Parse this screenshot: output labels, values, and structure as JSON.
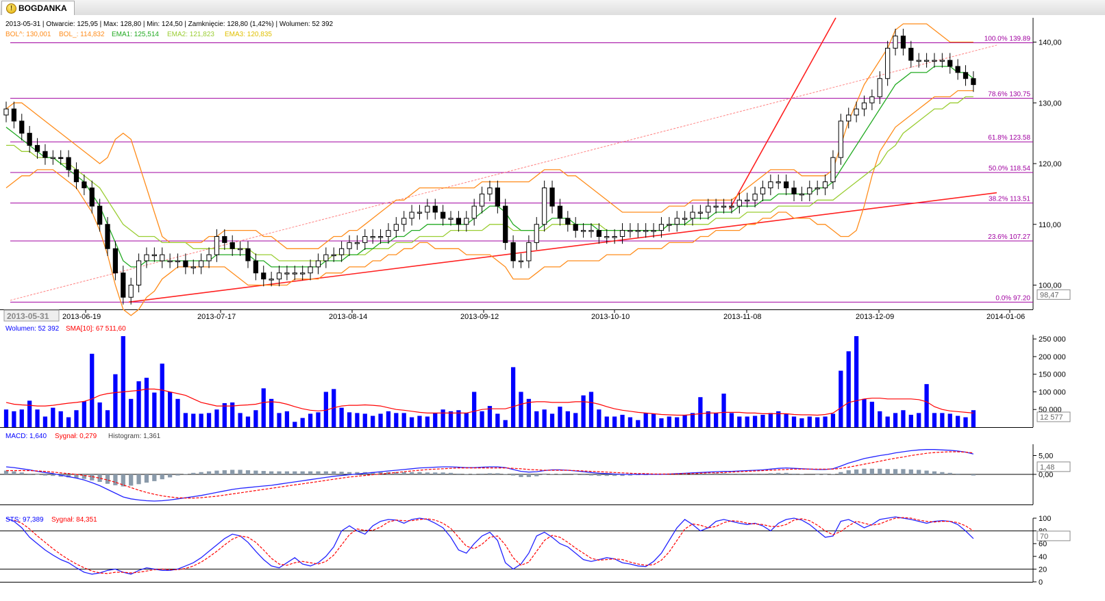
{
  "tab": {
    "title": "BOGDANKA",
    "icon": "warning-icon"
  },
  "colors": {
    "up": "#ffffff",
    "down": "#000000",
    "bol": "#ff8c1a",
    "ema1": "#22aa22",
    "ema2": "#9acd32",
    "ema3": "#e0e040",
    "fib": "#a000a0",
    "trend": "#ff2020",
    "volume": "#0000ff",
    "sma": "#ff0000",
    "macd": "#2222ff",
    "signal": "#ff0000",
    "hist": "#8a9aaa",
    "sts": "#2222ff"
  },
  "price_info": {
    "line1": "2013-05-31 | Otwarcie: 125,95 | Max: 128,80 | Min: 124,50 | Zamknięcie: 128,80 (1,42%) | Wolumen: 52 392",
    "bol_up": "BOL^: 130,001",
    "bol_dn": "BOL_: 114,832",
    "ema1": "EMA1: 125,514",
    "ema2": "EMA2: 121,823",
    "ema3": "EMA3: 120,835"
  },
  "volume_info": {
    "vol": "Wolumen: 52 392",
    "sma": "SMA[10]: 67 511,60"
  },
  "macd_info": {
    "macd": "MACD: 1,640",
    "signal": "Sygnał: 0,279",
    "hist": "Histogram: 1,361"
  },
  "sts_info": {
    "sts": "STS: 97,389",
    "signal": "Sygnał: 84,351"
  },
  "chart_data": {
    "type": "candlestick",
    "x_axis_labels": [
      "2013-06-19",
      "2013-07-17",
      "2013-08-14",
      "2013-09-12",
      "2013-10-10",
      "2013-11-08",
      "2013-12-09",
      "2014-01-06"
    ],
    "cursor_date": "2013-05-31",
    "price_axis": {
      "ylim": [
        96,
        144
      ],
      "ticks": [
        "100,00",
        "110,00",
        "120,00",
        "130,00",
        "140,00"
      ],
      "last_value": "98,47"
    },
    "fib_levels": [
      {
        "label": "100.0% 139.89",
        "value": 139.89
      },
      {
        "label": "78.6% 130.75",
        "value": 130.75
      },
      {
        "label": "61.8% 123.58",
        "value": 123.58
      },
      {
        "label": "50.0% 118.54",
        "value": 118.54
      },
      {
        "label": "38.2% 113.51",
        "value": 113.51
      },
      {
        "label": "23.6% 107.27",
        "value": 107.27
      },
      {
        "label": "0.0% 97.20",
        "value": 97.2
      }
    ],
    "closes": [
      129,
      127,
      125,
      123,
      122,
      121,
      121,
      121,
      119,
      117,
      116,
      113,
      110,
      106,
      102,
      98,
      100,
      104,
      105,
      105,
      104,
      104,
      104,
      103,
      103,
      104,
      105,
      108,
      107,
      106,
      106,
      104,
      102,
      101,
      101,
      102,
      102,
      102,
      102,
      103,
      104,
      105,
      105,
      106,
      107,
      107,
      108,
      108,
      108,
      109,
      110,
      111,
      112,
      112,
      113,
      112,
      111,
      111,
      110,
      111,
      113,
      115,
      116,
      113,
      107,
      104,
      104,
      107,
      110,
      116,
      113,
      111,
      110,
      109,
      109,
      109,
      108,
      108,
      108,
      109,
      109,
      109,
      109,
      109,
      110,
      110,
      111,
      111,
      112,
      112,
      113,
      113,
      113,
      113,
      114,
      114,
      115,
      116,
      117,
      117,
      116,
      115,
      115,
      116,
      116,
      117,
      121,
      127,
      128,
      129,
      130,
      131,
      134,
      139,
      141,
      139,
      137,
      137,
      137,
      137,
      137,
      136,
      135,
      134,
      133
    ],
    "fills": [
      0,
      1,
      1,
      1,
      1,
      1,
      0,
      1,
      1,
      1,
      1,
      1,
      1,
      1,
      1,
      1,
      0,
      0,
      0,
      0,
      0,
      0,
      0,
      1,
      0,
      0,
      0,
      0,
      1,
      1,
      0,
      1,
      1,
      1,
      0,
      0,
      0,
      0,
      0,
      0,
      0,
      0,
      0,
      0,
      0,
      0,
      0,
      0,
      0,
      0,
      0,
      0,
      0,
      0,
      0,
      1,
      1,
      0,
      1,
      0,
      0,
      0,
      0,
      1,
      1,
      1,
      0,
      0,
      0,
      0,
      1,
      1,
      1,
      1,
      0,
      0,
      1,
      0,
      0,
      0,
      0,
      0,
      0,
      0,
      0,
      0,
      0,
      0,
      0,
      0,
      0,
      0,
      0,
      0,
      0,
      0,
      0,
      0,
      0,
      0,
      1,
      1,
      0,
      0,
      0,
      0,
      0,
      0,
      0,
      0,
      0,
      0,
      0,
      0,
      0,
      1,
      1,
      0,
      0,
      0,
      0,
      1,
      1,
      1,
      1
    ],
    "ema1": [
      126,
      125,
      124,
      123,
      122,
      121,
      121,
      120,
      119,
      118,
      117,
      115,
      113,
      110,
      107,
      104,
      103,
      103,
      104,
      104,
      104,
      104,
      104,
      104,
      104,
      104,
      104,
      105,
      105,
      105,
      105,
      105,
      104,
      104,
      103,
      103,
      103,
      103,
      103,
      103,
      103,
      104,
      104,
      104,
      105,
      105,
      106,
      106,
      107,
      107,
      108,
      108,
      109,
      109,
      110,
      110,
      110,
      110,
      110,
      110,
      111,
      112,
      113,
      113,
      112,
      110,
      109,
      109,
      109,
      110,
      111,
      111,
      111,
      110,
      110,
      110,
      109,
      109,
      109,
      109,
      109,
      109,
      109,
      109,
      109,
      110,
      110,
      110,
      111,
      111,
      111,
      112,
      112,
      112,
      113,
      113,
      113,
      114,
      114,
      115,
      115,
      115,
      115,
      115,
      116,
      116,
      117,
      119,
      121,
      123,
      125,
      127,
      129,
      131,
      133,
      134,
      135,
      135,
      135,
      136,
      136,
      136,
      135,
      135,
      134
    ],
    "ema2": [
      123,
      123,
      122,
      122,
      121,
      121,
      121,
      120,
      120,
      119,
      118,
      117,
      116,
      114,
      112,
      110,
      109,
      108,
      108,
      108,
      107,
      107,
      107,
      107,
      106,
      106,
      106,
      106,
      106,
      106,
      106,
      106,
      105,
      105,
      105,
      104,
      104,
      104,
      104,
      104,
      104,
      104,
      105,
      105,
      105,
      105,
      105,
      106,
      106,
      106,
      107,
      107,
      107,
      108,
      108,
      108,
      108,
      109,
      109,
      109,
      109,
      109,
      110,
      110,
      110,
      109,
      109,
      109,
      109,
      109,
      110,
      110,
      110,
      110,
      110,
      110,
      110,
      109,
      109,
      109,
      109,
      109,
      109,
      109,
      109,
      110,
      110,
      110,
      110,
      110,
      110,
      111,
      111,
      111,
      111,
      112,
      112,
      112,
      112,
      113,
      113,
      113,
      113,
      113,
      114,
      114,
      114,
      115,
      116,
      117,
      118,
      119,
      120,
      122,
      123,
      125,
      126,
      127,
      128,
      129,
      129,
      130,
      130,
      131,
      131
    ],
    "ema3": [
      null,
      null,
      null,
      null,
      null,
      null,
      null,
      null,
      null,
      null,
      null,
      null,
      null,
      null,
      null,
      null,
      null,
      null,
      null,
      null,
      null,
      null,
      null,
      null,
      null,
      null,
      null,
      null,
      null,
      null,
      null,
      null,
      null,
      null,
      null,
      null,
      null,
      null,
      null,
      null,
      null,
      null,
      null,
      null,
      null,
      null,
      null,
      null,
      null,
      null,
      null,
      null,
      null,
      null,
      null,
      null,
      null,
      null,
      null,
      null,
      null,
      null,
      null,
      null,
      null,
      null,
      null,
      null,
      null,
      null,
      null,
      null,
      null,
      null,
      null,
      null,
      null,
      null,
      null,
      null,
      null,
      null,
      null,
      null,
      null,
      null,
      null,
      null,
      null,
      null,
      null,
      null,
      null,
      null,
      null,
      null,
      null,
      null,
      null,
      null,
      null,
      null,
      null,
      null,
      null,
      null,
      null,
      null,
      null,
      null,
      null,
      null,
      null,
      null,
      null,
      null,
      null,
      null,
      null,
      null,
      null,
      null,
      null,
      null,
      null
    ],
    "bol_up": [
      129,
      130,
      130,
      129,
      128,
      127,
      126,
      125,
      124,
      123,
      122,
      121,
      120,
      121,
      124,
      125,
      124,
      120,
      116,
      112,
      108,
      107,
      107,
      107,
      107,
      107,
      108,
      108,
      109,
      109,
      109,
      109,
      109,
      108,
      108,
      107,
      106,
      106,
      106,
      106,
      106,
      107,
      108,
      108,
      109,
      109,
      110,
      111,
      112,
      113,
      114,
      114,
      115,
      116,
      116,
      116,
      116,
      116,
      116,
      116,
      116,
      117,
      117,
      117,
      117,
      117,
      117,
      117,
      118,
      119,
      119,
      119,
      118,
      118,
      117,
      116,
      115,
      114,
      113,
      112,
      112,
      112,
      112,
      112,
      112,
      113,
      113,
      113,
      114,
      114,
      114,
      114,
      114,
      114,
      115,
      116,
      117,
      118,
      119,
      119,
      119,
      119,
      118,
      118,
      118,
      118,
      119,
      123,
      127,
      130,
      133,
      135,
      137,
      139,
      142,
      143,
      143,
      143,
      143,
      142,
      141,
      140,
      140,
      140,
      140
    ],
    "bol_dn": [
      116,
      117,
      118,
      118,
      119,
      119,
      119,
      118,
      117,
      116,
      114,
      112,
      109,
      105,
      100,
      96,
      95,
      96,
      98,
      99,
      101,
      102,
      103,
      103,
      103,
      103,
      103,
      103,
      103,
      102,
      101,
      100,
      100,
      100,
      100,
      100,
      100,
      101,
      101,
      101,
      101,
      102,
      102,
      102,
      103,
      103,
      103,
      104,
      104,
      105,
      105,
      106,
      106,
      107,
      107,
      106,
      106,
      106,
      106,
      105,
      105,
      105,
      105,
      104,
      103,
      101,
      101,
      101,
      102,
      103,
      103,
      103,
      104,
      104,
      104,
      104,
      104,
      105,
      105,
      105,
      105,
      106,
      106,
      106,
      106,
      107,
      107,
      107,
      107,
      108,
      108,
      109,
      109,
      109,
      109,
      110,
      110,
      111,
      111,
      112,
      112,
      111,
      111,
      111,
      110,
      110,
      109,
      108,
      108,
      109,
      113,
      118,
      122,
      124,
      126,
      127,
      128,
      129,
      130,
      131,
      131,
      131,
      132,
      132,
      132
    ],
    "volume_k": [
      50,
      45,
      50,
      75,
      50,
      30,
      55,
      45,
      28,
      48,
      73,
      208,
      70,
      48,
      150,
      258,
      80,
      130,
      140,
      98,
      180,
      100,
      80,
      40,
      38,
      38,
      40,
      50,
      68,
      70,
      40,
      30,
      48,
      110,
      80,
      40,
      45,
      15,
      26,
      38,
      42,
      100,
      108,
      55,
      42,
      40,
      38,
      32,
      38,
      45,
      40,
      40,
      28,
      32,
      30,
      40,
      50,
      45,
      48,
      40,
      100,
      45,
      60,
      38,
      20,
      170,
      100,
      80,
      45,
      50,
      38,
      58,
      45,
      40,
      90,
      100,
      50,
      30,
      30,
      35,
      28,
      20,
      40,
      38,
      25,
      30,
      28,
      35,
      40,
      85,
      45,
      40,
      95,
      40,
      30,
      30,
      32,
      35,
      40,
      45,
      38,
      30,
      25,
      30,
      28,
      30,
      38,
      160,
      215,
      258,
      80,
      72,
      45,
      30,
      40,
      48,
      35,
      40,
      122,
      40,
      40,
      38,
      32,
      28,
      48
    ],
    "sma_k": [
      70,
      65,
      63,
      62,
      60,
      60,
      62,
      65,
      68,
      70,
      73,
      80,
      90,
      95,
      98,
      100,
      102,
      104,
      108,
      108,
      105,
      100,
      95,
      90,
      80,
      70,
      65,
      60,
      60,
      60,
      62,
      63,
      65,
      70,
      72,
      70,
      65,
      58,
      52,
      48,
      46,
      48,
      55,
      60,
      62,
      62,
      63,
      62,
      60,
      55,
      50,
      48,
      45,
      42,
      40,
      40,
      40,
      40,
      40,
      40,
      45,
      50,
      52,
      52,
      52,
      58,
      65,
      70,
      72,
      72,
      70,
      70,
      70,
      72,
      72,
      70,
      65,
      58,
      52,
      48,
      45,
      42,
      40,
      38,
      36,
      35,
      34,
      34,
      36,
      38,
      40,
      40,
      42,
      42,
      42,
      40,
      40,
      38,
      38,
      38,
      38,
      36,
      35,
      35,
      34,
      36,
      40,
      55,
      70,
      75,
      80,
      82,
      82,
      80,
      80,
      80,
      80,
      78,
      72,
      58,
      50,
      46,
      44,
      42,
      40
    ],
    "macd": [
      2,
      1.8,
      1.5,
      1.2,
      0.8,
      0.5,
      0.2,
      -0.2,
      -0.6,
      -1,
      -1.5,
      -2.2,
      -3,
      -4,
      -5,
      -6,
      -6.5,
      -6.8,
      -7,
      -7.1,
      -7,
      -6.8,
      -6.5,
      -6.2,
      -5.9,
      -5.6,
      -5.2,
      -4.8,
      -4.4,
      -4,
      -3.7,
      -3.5,
      -3.3,
      -3.1,
      -2.9,
      -2.6,
      -2.3,
      -2,
      -1.7,
      -1.4,
      -1.1,
      -0.8,
      -0.5,
      -0.3,
      -0.1,
      0.1,
      0.3,
      0.5,
      0.7,
      0.9,
      1.1,
      1.3,
      1.5,
      1.7,
      1.8,
      1.9,
      2,
      2,
      1.9,
      1.8,
      1.8,
      1.9,
      2,
      2,
      1.8,
      1.3,
      0.8,
      0.6,
      0.7,
      1,
      1.2,
      1.2,
      1.1,
      0.9,
      0.7,
      0.5,
      0.3,
      0.2,
      0.1,
      0,
      0,
      0,
      0,
      0,
      0,
      0.1,
      0.2,
      0.3,
      0.4,
      0.5,
      0.6,
      0.7,
      0.8,
      0.8,
      0.9,
      1,
      1.1,
      1.2,
      1.4,
      1.6,
      1.7,
      1.6,
      1.5,
      1.4,
      1.3,
      1.3,
      1.5,
      2.2,
      3,
      3.6,
      4.2,
      4.6,
      5,
      5.3,
      5.7,
      6,
      6.3,
      6.5,
      6.6,
      6.6,
      6.5,
      6.4,
      6.2,
      5.9,
      5.4
    ],
    "macd_signal": [
      1,
      1,
      1,
      1,
      0.9,
      0.8,
      0.6,
      0.4,
      0.2,
      0,
      -0.3,
      -0.6,
      -1,
      -1.5,
      -2.1,
      -2.8,
      -3.5,
      -4.2,
      -4.8,
      -5.3,
      -5.7,
      -6,
      -6.2,
      -6.3,
      -6.3,
      -6.2,
      -6,
      -5.8,
      -5.5,
      -5.2,
      -4.9,
      -4.6,
      -4.3,
      -4,
      -3.7,
      -3.4,
      -3.1,
      -2.8,
      -2.5,
      -2.2,
      -1.9,
      -1.6,
      -1.3,
      -1,
      -0.7,
      -0.5,
      -0.3,
      -0.1,
      0.1,
      0.3,
      0.5,
      0.7,
      0.9,
      1.1,
      1.3,
      1.4,
      1.5,
      1.6,
      1.7,
      1.7,
      1.7,
      1.7,
      1.7,
      1.7,
      1.7,
      1.6,
      1.5,
      1.3,
      1.2,
      1.1,
      1.1,
      1.1,
      1.1,
      1,
      0.9,
      0.8,
      0.7,
      0.6,
      0.5,
      0.4,
      0.3,
      0.2,
      0.2,
      0.1,
      0.1,
      0.1,
      0.1,
      0.2,
      0.2,
      0.3,
      0.4,
      0.4,
      0.5,
      0.6,
      0.7,
      0.8,
      0.9,
      1,
      1.1,
      1.2,
      1.3,
      1.4,
      1.4,
      1.4,
      1.4,
      1.4,
      1.4,
      1.6,
      1.9,
      2.3,
      2.7,
      3.1,
      3.5,
      3.9,
      4.3,
      4.6,
      5,
      5.3,
      5.6,
      5.8,
      5.9,
      6,
      6,
      5.9,
      5.7
    ],
    "sts": [
      100,
      95,
      85,
      70,
      60,
      50,
      42,
      35,
      30,
      22,
      15,
      12,
      14,
      18,
      20,
      15,
      12,
      18,
      22,
      20,
      18,
      18,
      20,
      25,
      30,
      38,
      48,
      58,
      68,
      75,
      72,
      62,
      48,
      35,
      25,
      22,
      30,
      38,
      28,
      25,
      30,
      40,
      55,
      80,
      88,
      80,
      75,
      88,
      95,
      98,
      97,
      92,
      98,
      100,
      98,
      92,
      85,
      70,
      50,
      45,
      60,
      72,
      78,
      65,
      30,
      20,
      28,
      45,
      72,
      78,
      70,
      60,
      55,
      45,
      35,
      32,
      35,
      38,
      36,
      30,
      28,
      25,
      24,
      32,
      45,
      65,
      85,
      98,
      90,
      80,
      85,
      95,
      98,
      95,
      92,
      90,
      92,
      88,
      80,
      92,
      98,
      100,
      97,
      90,
      80,
      70,
      72,
      95,
      98,
      92,
      85,
      90,
      98,
      100,
      102,
      100,
      98,
      95,
      92,
      95,
      96,
      95,
      90,
      80,
      68
    ],
    "sts_signal": [
      null,
      97,
      92,
      83,
      72,
      62,
      52,
      43,
      35,
      28,
      22,
      17,
      14,
      13,
      15,
      15,
      14,
      15,
      17,
      19,
      20,
      19,
      19,
      21,
      25,
      31,
      39,
      48,
      58,
      67,
      72,
      70,
      62,
      50,
      37,
      28,
      26,
      30,
      32,
      30,
      28,
      32,
      42,
      58,
      74,
      83,
      81,
      81,
      86,
      94,
      97,
      96,
      96,
      98,
      99,
      97,
      92,
      84,
      70,
      56,
      52,
      59,
      70,
      72,
      58,
      38,
      26,
      31,
      48,
      65,
      73,
      70,
      62,
      53,
      45,
      37,
      34,
      35,
      36,
      35,
      31,
      28,
      26,
      27,
      34,
      47,
      65,
      83,
      91,
      89,
      85,
      87,
      93,
      96,
      95,
      92,
      91,
      90,
      87,
      87,
      90,
      97,
      99,
      96,
      89,
      80,
      74,
      79,
      88,
      95,
      92,
      89,
      91,
      96,
      100,
      101,
      100,
      97,
      95,
      94,
      95,
      95,
      93,
      88,
      80
    ],
    "vol_axis": [
      "250 000",
      "200 000",
      "150 000",
      "100 000",
      "50 000"
    ],
    "vol_last": "12 577",
    "macd_axis": [
      "5,00",
      "0,00"
    ],
    "macd_last": "1,48",
    "sts_axis": [
      "100",
      "80",
      "60",
      "40",
      "20",
      "0"
    ],
    "sts_last": "70"
  }
}
